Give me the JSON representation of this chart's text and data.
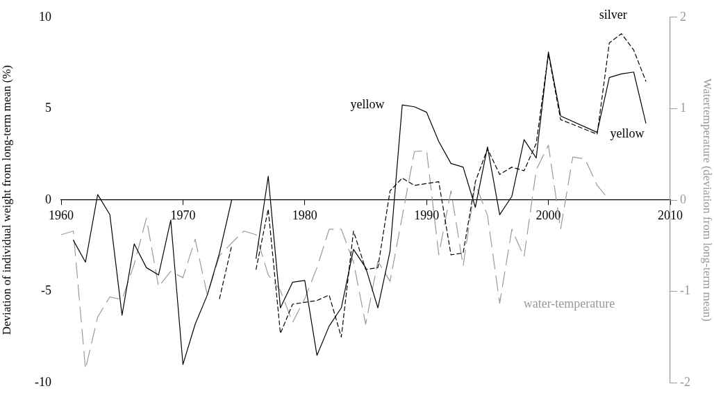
{
  "chart_data": {
    "type": "line",
    "xlabel": null,
    "ylabel": "Deviation of individual weight from long-term mean (%)",
    "y2label": "Watertemperature (deviation from long-term mean)",
    "xlim": [
      1960,
      2010
    ],
    "xticks": [
      1960,
      1970,
      1980,
      1990,
      2000,
      2010
    ],
    "ylim": [
      -10,
      10
    ],
    "yticks": [
      -10,
      -5,
      0,
      5,
      10
    ],
    "y2lim": [
      -2,
      2
    ],
    "y2ticks": [
      -2,
      -1,
      0,
      1,
      2
    ],
    "grid": false,
    "legend": false,
    "marker": "none",
    "series": [
      {
        "name": "yellow",
        "color": "#000000",
        "line_style": "solid",
        "x": [
          1961,
          1962,
          1963,
          1964,
          1965,
          1966,
          1967,
          1968,
          1969,
          1970,
          1971,
          1972,
          1973,
          1974,
          1975,
          1976,
          1977,
          1978,
          1979,
          1980,
          1981,
          1982,
          1983,
          1984,
          1985,
          1986,
          1987,
          1988,
          1989,
          1990,
          1991,
          1992,
          1993,
          1994,
          1995,
          1996,
          1997,
          1998,
          1999,
          2000,
          2001,
          2004,
          2005,
          2006,
          2007,
          2008
        ],
        "values": [
          -2.2,
          -3.4,
          0.3,
          -0.8,
          -6.3,
          -2.4,
          -3.7,
          -4.1,
          -1.1,
          -9.0,
          -6.8,
          -5.2,
          -2.9,
          0,
          null,
          -3.2,
          1.3,
          -5.9,
          -4.5,
          -4.4,
          -8.5,
          -6.9,
          -5.9,
          -2.7,
          -3.7,
          -5.9,
          -2.8,
          5.2,
          5.1,
          4.8,
          3.2,
          2.0,
          1.8,
          -0.4,
          2.9,
          -0.8,
          0.2,
          3.3,
          2.3,
          8.1,
          4.6,
          3.7,
          6.7,
          6.9,
          7.0,
          4.2
        ]
      },
      {
        "name": "silver",
        "color": "#000000",
        "line_style": "dashed",
        "x": [
          1973,
          1974,
          1975,
          1976,
          1977,
          1978,
          1979,
          1980,
          1981,
          1982,
          1983,
          1984,
          1985,
          1986,
          1987,
          1988,
          1989,
          1990,
          1991,
          1992,
          1993,
          1994,
          1995,
          1996,
          1997,
          1998,
          1999,
          2000,
          2001,
          2004,
          2005,
          2006,
          2007,
          2008
        ],
        "values": [
          -5.4,
          -2.5,
          null,
          -3.8,
          -0.5,
          -7.3,
          -5.7,
          -5.6,
          -5.5,
          -5.2,
          -7.5,
          -1.7,
          -3.8,
          -3.7,
          0.5,
          1.2,
          0.8,
          0.9,
          1.0,
          -3.0,
          -2.9,
          1.0,
          2.8,
          1.4,
          1.8,
          1.6,
          3.1,
          8.0,
          4.4,
          3.6,
          8.6,
          9.1,
          8.2,
          6.5
        ]
      },
      {
        "name": "water-temperature",
        "color": "#999999",
        "line_style": "dashed",
        "axis": "y2",
        "x": [
          1960,
          1961,
          1962,
          1963,
          1964,
          1965,
          1966,
          1967,
          1968,
          1969,
          1970,
          1971,
          1972,
          1973,
          1974,
          1975,
          1976,
          1977,
          1978,
          1979,
          1980,
          1981,
          1982,
          1983,
          1984,
          1985,
          1986,
          1987,
          1988,
          1989,
          1990,
          1991,
          1992,
          1993,
          1994,
          1995,
          1996,
          1997,
          1998,
          1999,
          2000,
          2001,
          2002,
          2003,
          2004,
          2005
        ],
        "values": [
          -0.38,
          -0.34,
          -1.85,
          -1.28,
          -1.06,
          -1.09,
          -0.7,
          -0.2,
          -0.95,
          -0.78,
          -0.85,
          -0.43,
          -1.04,
          -0.61,
          -0.47,
          -0.34,
          -0.38,
          -0.82,
          -0.99,
          -1.34,
          -1.08,
          -0.74,
          -0.32,
          -0.32,
          -0.68,
          -1.36,
          -0.67,
          -0.89,
          -0.18,
          0.53,
          0.54,
          -0.6,
          0.1,
          -0.72,
          0.18,
          -0.17,
          -1.13,
          -0.32,
          -0.62,
          0.33,
          0.6,
          -0.32,
          0.47,
          0.45,
          0.16,
          0
        ]
      }
    ],
    "annotations": [
      "yellow"
    ]
  }
}
